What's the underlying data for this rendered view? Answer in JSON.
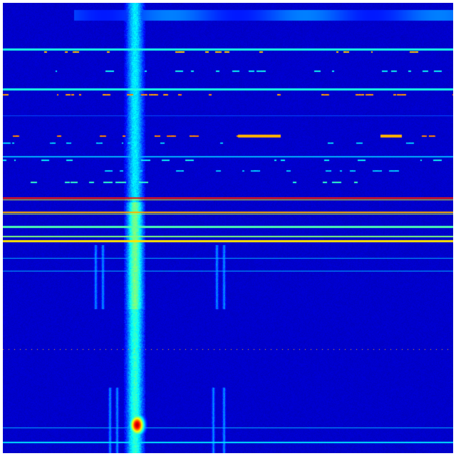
{
  "image": {
    "kind": "heatmap",
    "colormap": "jet",
    "background_color": "#ffffff",
    "low_color": "#00008f",
    "high_color": "#c00000"
  }
}
